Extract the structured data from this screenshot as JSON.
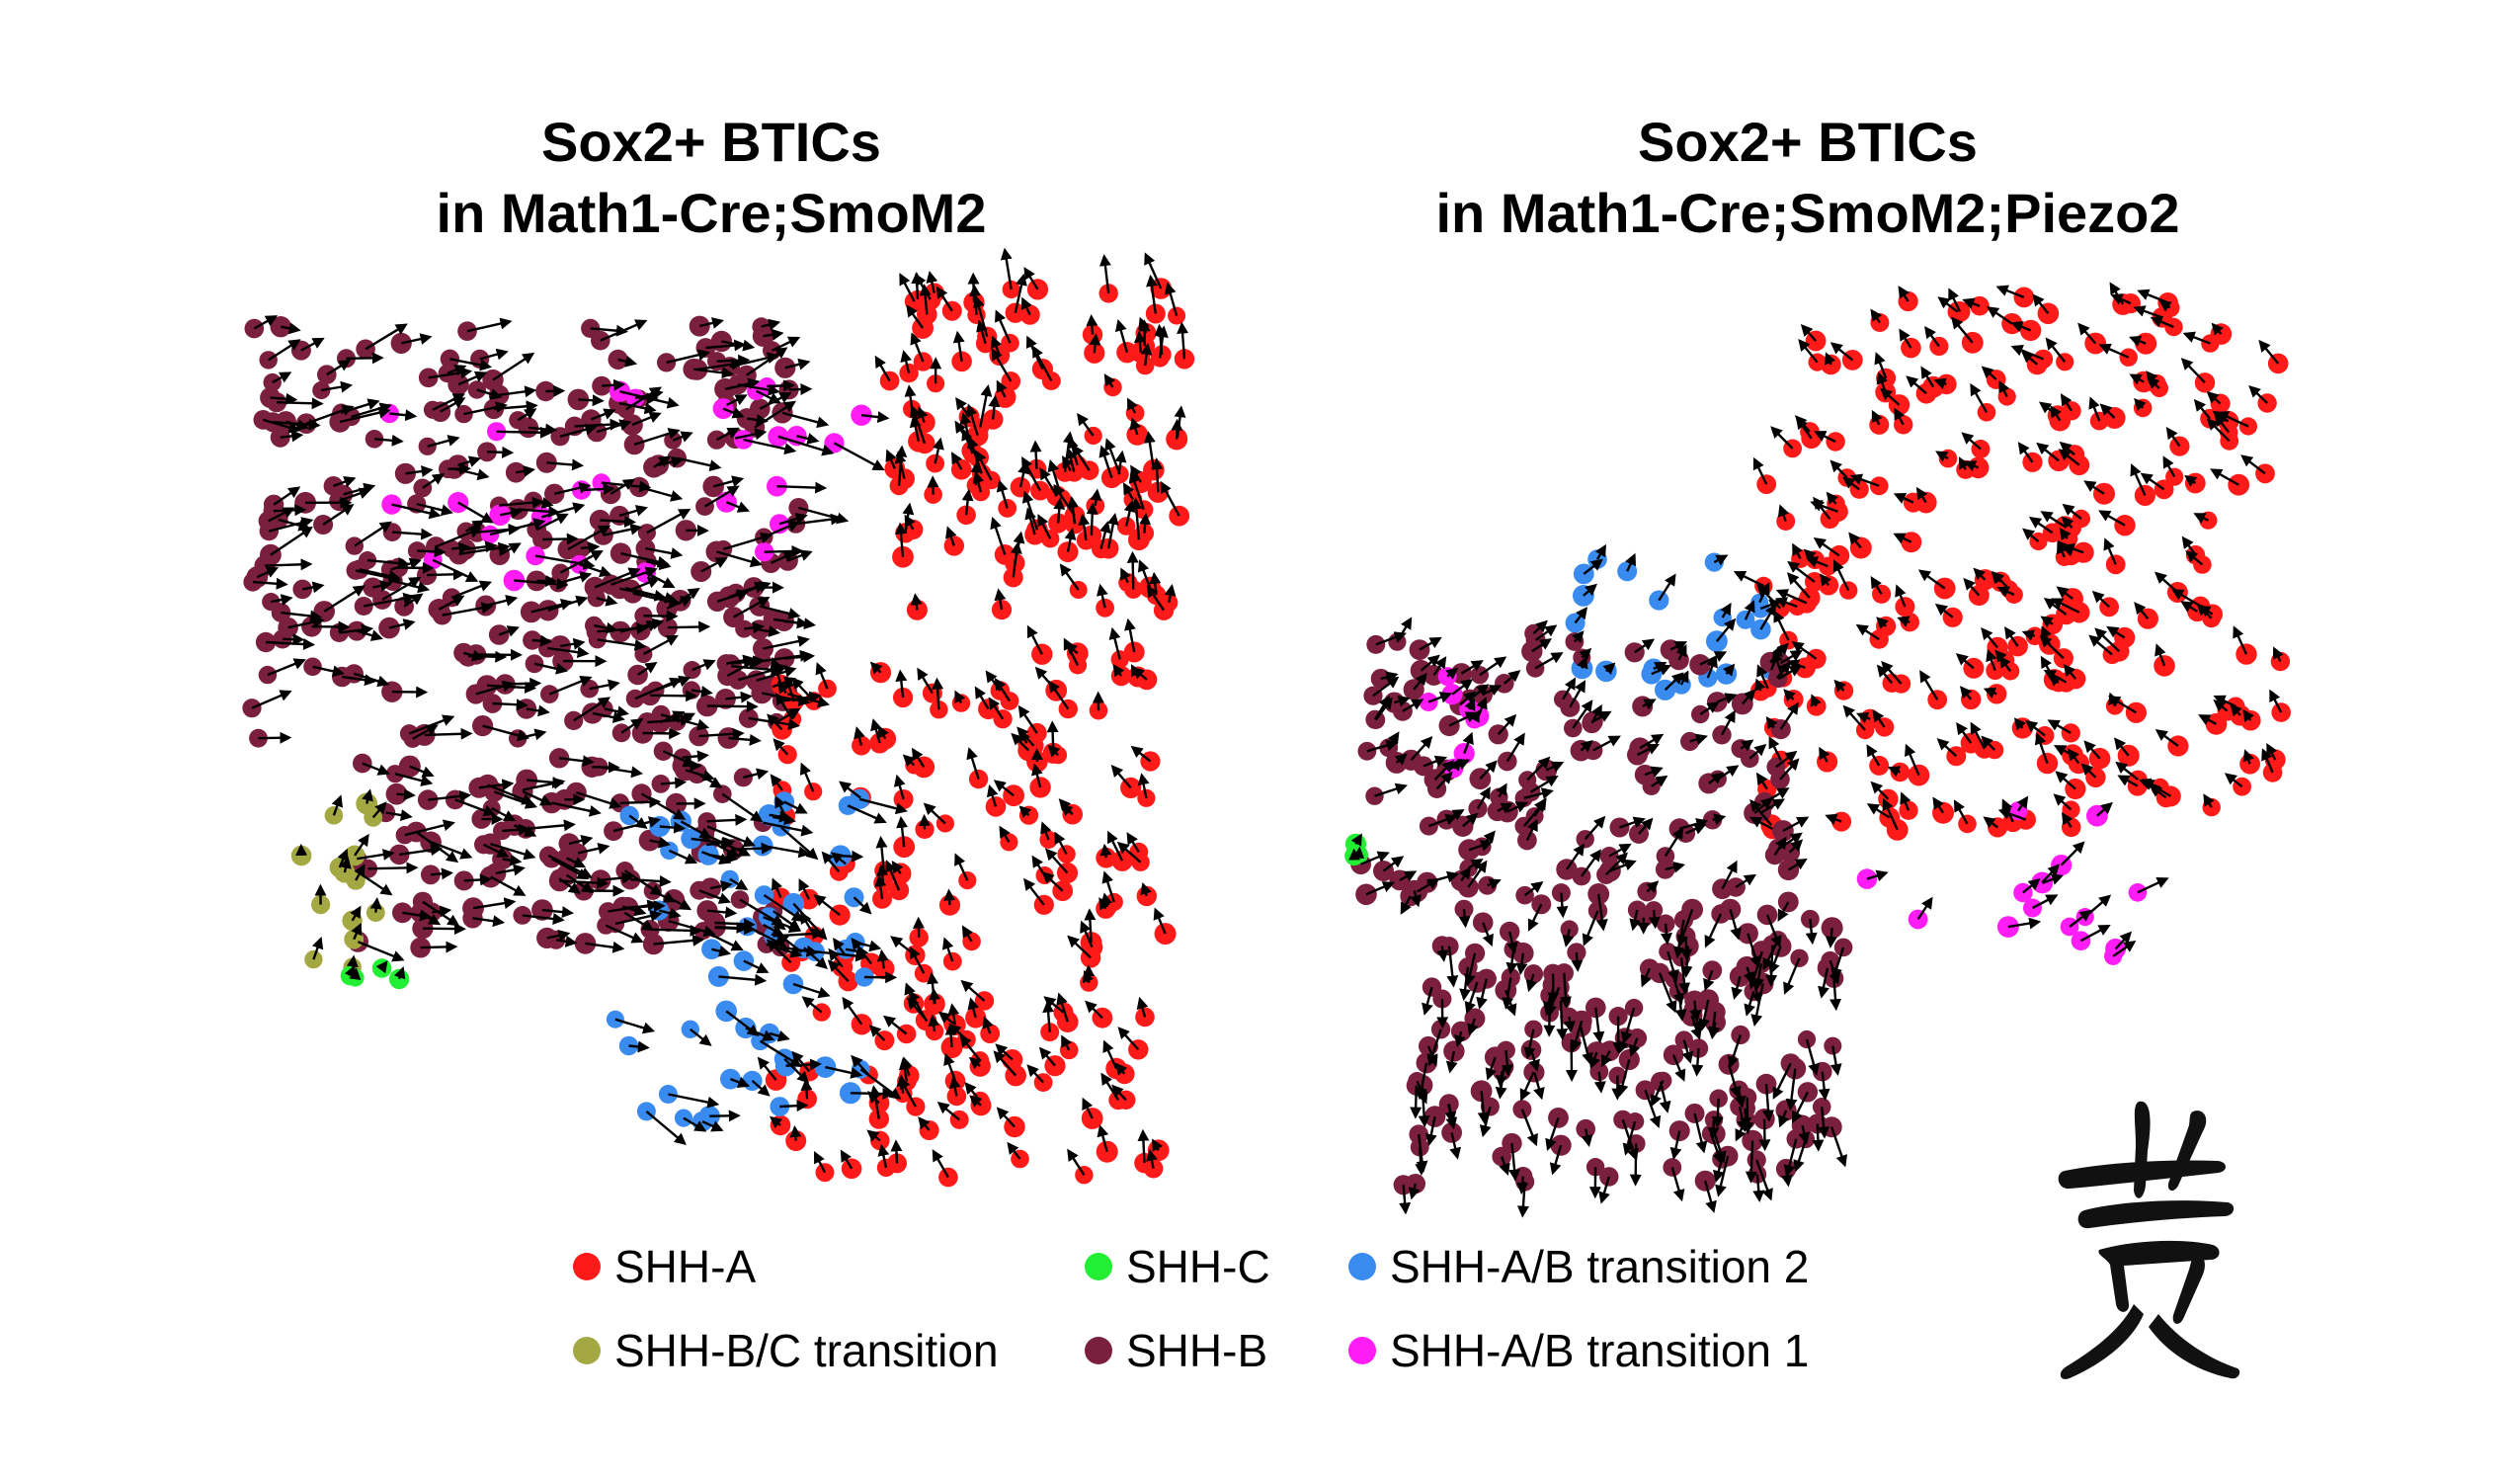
{
  "colors": {
    "SHH-A": "#ff1a1a",
    "SHH-B": "#7a1f3d",
    "SHH-C": "#22ee33",
    "SHH-B/C transition": "#a4a842",
    "SHH-A/B transition 2": "#3a8bf0",
    "SHH-A/B transition 1": "#ff1cf5",
    "arrow": "#000000"
  },
  "legend": {
    "items": [
      {
        "label": "SHH-A",
        "color": "#ff1a1a"
      },
      {
        "label": "SHH-B/C transition",
        "color": "#a4a842"
      },
      {
        "label": "SHH-C",
        "color": "#22ee33"
      },
      {
        "label": "SHH-B",
        "color": "#7a1f3d"
      },
      {
        "label": "SHH-A/B transition 2",
        "color": "#3a8bf0"
      },
      {
        "label": "SHH-A/B transition 1",
        "color": "#ff1cf5"
      }
    ]
  },
  "seal_icon": "calligraphy-seal",
  "chart_data": [
    {
      "type": "scatter",
      "subtype": "velocity-embedding",
      "title_line1": "Sox2+ BTICs",
      "title_line2": "in Math1-Cre;SmoM2",
      "xlabel": "",
      "ylabel": "",
      "axes_visible": false,
      "grid": false,
      "clusters": [
        {
          "name": "SHH-B",
          "density": "high",
          "region": "upper-left"
        },
        {
          "name": "SHH-A/B transition 1",
          "density": "low",
          "region": "upper-center"
        },
        {
          "name": "SHH-A",
          "density": "high",
          "region": "right"
        },
        {
          "name": "SHH-A/B transition 2",
          "density": "medium",
          "region": "lower-center"
        },
        {
          "name": "SHH-B/C transition",
          "density": "low",
          "region": "lower-left"
        },
        {
          "name": "SHH-C",
          "density": "low",
          "region": "lower-left"
        }
      ]
    },
    {
      "type": "scatter",
      "subtype": "velocity-embedding",
      "title_line1": "Sox2+ BTICs",
      "title_line2": "in Math1-Cre;SmoM2;Piezo2",
      "xlabel": "",
      "ylabel": "",
      "axes_visible": false,
      "grid": false,
      "clusters": [
        {
          "name": "SHH-A",
          "density": "high",
          "region": "upper-right"
        },
        {
          "name": "SHH-A/B transition 2",
          "density": "medium",
          "region": "upper-center"
        },
        {
          "name": "SHH-B",
          "density": "high",
          "region": "lower-left"
        },
        {
          "name": "SHH-A/B transition 1",
          "density": "low",
          "region": "bridge"
        },
        {
          "name": "SHH-C",
          "density": "low",
          "region": "left"
        }
      ]
    }
  ]
}
